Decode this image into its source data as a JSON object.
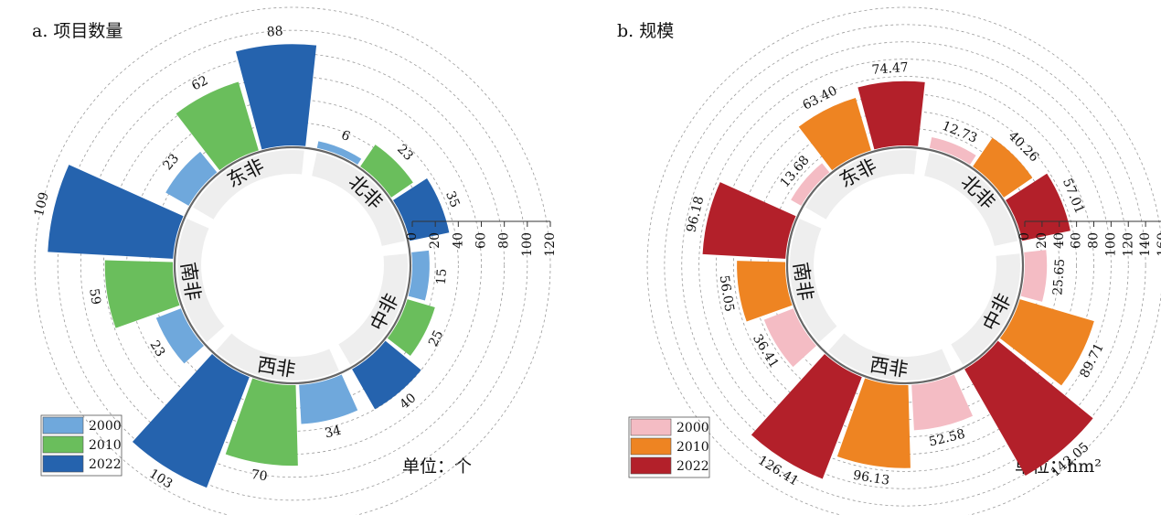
{
  "chart_data": [
    {
      "type": "radial-bar",
      "title": "a. 项目数量",
      "unit": "单位：个",
      "categories": [
        "北非",
        "中非",
        "西非",
        "南非",
        "东非"
      ],
      "years": [
        "2000",
        "2010",
        "2022"
      ],
      "colors": [
        "#6fa8dc",
        "#6abe5c",
        "#2563ae"
      ],
      "values": [
        [
          6,
          23,
          35
        ],
        [
          15,
          25,
          40
        ],
        [
          34,
          70,
          103
        ],
        [
          23,
          59,
          109
        ],
        [
          23,
          62,
          88
        ]
      ],
      "value_labels": [
        [
          "6",
          "23",
          "35"
        ],
        [
          "15",
          "25",
          "40"
        ],
        [
          "34",
          "70",
          "103"
        ],
        [
          "23",
          "59",
          "109"
        ],
        [
          "23",
          "62",
          "88"
        ]
      ],
      "axis_ticks": [
        0,
        20,
        40,
        60,
        80,
        100,
        120
      ],
      "axis_tick_labels": [
        "0",
        "20",
        "40",
        "60",
        "80",
        "100",
        "120"
      ],
      "axis_max": 120,
      "legend_position": "bottom-left"
    },
    {
      "type": "radial-bar",
      "title": "b. 规模",
      "unit": "单位：hm²",
      "categories": [
        "北非",
        "中非",
        "西非",
        "南非",
        "东非"
      ],
      "years": [
        "2000",
        "2010",
        "2022"
      ],
      "colors": [
        "#f4bcc4",
        "#ee8422",
        "#b3202a"
      ],
      "values": [
        [
          12.73,
          40.26,
          57.01
        ],
        [
          25.65,
          89.71,
          142.05
        ],
        [
          52.58,
          96.13,
          126.41
        ],
        [
          36.41,
          56.05,
          96.18
        ],
        [
          13.68,
          63.4,
          74.47
        ]
      ],
      "value_labels": [
        [
          "12.73",
          "40.26",
          "57.01"
        ],
        [
          "25.65",
          "89.71",
          "142.05"
        ],
        [
          "52.58",
          "96.13",
          "126.41"
        ],
        [
          "36.41",
          "56.05",
          "96.18"
        ],
        [
          "13.68",
          "63.40",
          "74.47"
        ]
      ],
      "axis_ticks": [
        0,
        20,
        40,
        60,
        80,
        100,
        120,
        140,
        160
      ],
      "axis_tick_labels": [
        "0",
        "20",
        "40",
        "60",
        "80",
        "100",
        "120",
        "140",
        "160"
      ],
      "axis_max": 160,
      "legend_position": "bottom-left"
    }
  ]
}
